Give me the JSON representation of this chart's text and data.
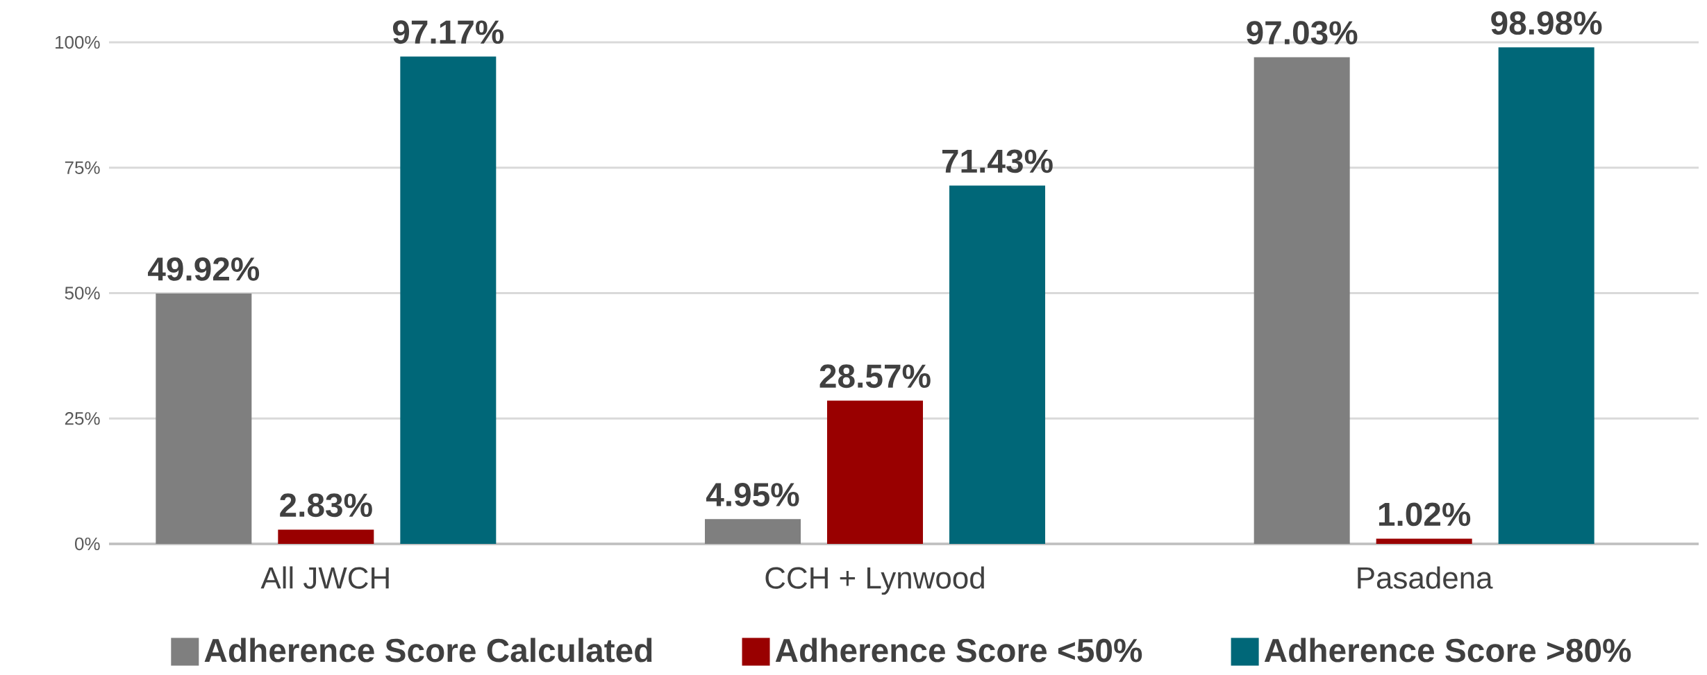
{
  "chart_data": {
    "type": "bar",
    "categories": [
      "All JWCH",
      "CCH + Lynwood",
      "Pasadena"
    ],
    "series": [
      {
        "name": "Adherence Score Calculated",
        "color": "#7f7f7f",
        "values": [
          49.92,
          4.95,
          97.03
        ],
        "value_labels": [
          "49.92%",
          "4.95%",
          "97.03%"
        ]
      },
      {
        "name": "Adherence Score <50%",
        "color": "#990000",
        "values": [
          2.83,
          28.57,
          1.02
        ],
        "value_labels": [
          "2.83%",
          "28.57%",
          "1.02%"
        ]
      },
      {
        "name": "Adherence Score >80%",
        "color": "#006778",
        "values": [
          97.17,
          71.43,
          98.98
        ],
        "value_labels": [
          "97.17%",
          "71.43%",
          "98.98%"
        ]
      }
    ],
    "ylim": [
      0,
      100
    ],
    "yticks": [
      {
        "value": 0,
        "label": "0%"
      },
      {
        "value": 25,
        "label": "25%"
      },
      {
        "value": 50,
        "label": "50%"
      },
      {
        "value": 75,
        "label": "75%"
      },
      {
        "value": 100,
        "label": "100%"
      }
    ],
    "grid": "y",
    "legend": "bottom"
  }
}
